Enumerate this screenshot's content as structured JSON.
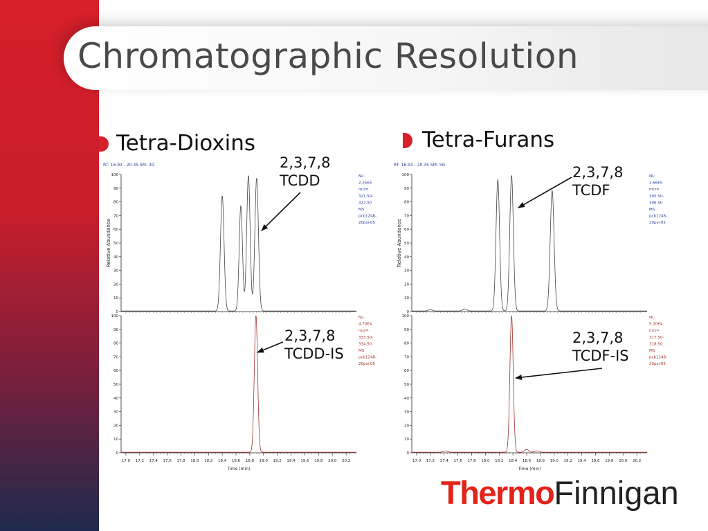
{
  "slide": {
    "title": "Chromatographic Resolution",
    "colors": {
      "accent": "#d8202a",
      "trace_top": "#444444",
      "trace_bottom": "#a0302a",
      "label_blue": "#27419a"
    },
    "logo": {
      "part1": "Thermo",
      "part2": "Finnigan"
    }
  },
  "left": {
    "heading": "Tetra-Dioxins",
    "header_text": "RT: 16.93 - 20.35  SM: 3G",
    "annotations": [
      {
        "id": "tcdd",
        "text": "2,3,7,8\nTCDD"
      },
      {
        "id": "tcdd-is",
        "text": "2,3,7,8\nTCDD-IS"
      }
    ]
  },
  "right": {
    "heading": "Tetra-Furans",
    "header_text": "RT: 16.93 - 20.35  SM: 5G",
    "annotations": [
      {
        "id": "tcdf",
        "text": "2,3,7,8\nTCDF"
      },
      {
        "id": "tcdf-is",
        "text": "2,3,7,8\nTCDF-IS"
      }
    ]
  },
  "chart_data": [
    {
      "type": "line",
      "id": "dioxin-native",
      "xlabel": "",
      "ylabel": "Relative Abundance",
      "xlim": [
        16.93,
        20.35
      ],
      "ylim": [
        0,
        100
      ],
      "x_ticks": [],
      "y_ticks": [
        0,
        10,
        20,
        30,
        40,
        50,
        60,
        70,
        80,
        90,
        100
      ],
      "info_text": [
        "NL:",
        "2.25E5",
        "m/z=",
        "321.50-",
        "322.50",
        "MS",
        "pcb1248-",
        "20psi-05"
      ],
      "series": [
        {
          "peaks": [
            {
              "rt": 18.4,
              "height": 84,
              "width": 0.026
            },
            {
              "rt": 18.67,
              "height": 77,
              "width": 0.024
            },
            {
              "rt": 18.78,
              "height": 99,
              "width": 0.025
            },
            {
              "rt": 18.9,
              "height": 97,
              "width": 0.026
            }
          ]
        }
      ]
    },
    {
      "type": "line",
      "id": "dioxin-is",
      "xlabel": "Time (min)",
      "ylabel": "",
      "xlim": [
        16.93,
        20.35
      ],
      "ylim": [
        0,
        100
      ],
      "x_ticks": [
        17.0,
        17.2,
        17.4,
        17.6,
        17.8,
        18.0,
        18.2,
        18.4,
        18.6,
        18.8,
        19.0,
        19.2,
        19.4,
        19.6,
        19.8,
        20.0,
        20.2
      ],
      "y_ticks": [
        0,
        10,
        20,
        30,
        40,
        50,
        60,
        70,
        80,
        90,
        100
      ],
      "info_text": [
        "NL:",
        "4.70E4",
        "m/z=",
        "333.50-",
        "334.50",
        "MS",
        "pcb1248-",
        "20psi-05"
      ],
      "series": [
        {
          "peaks": [
            {
              "rt": 18.89,
              "height": 100,
              "width": 0.024
            }
          ]
        }
      ]
    },
    {
      "type": "line",
      "id": "furan-native",
      "xlabel": "",
      "ylabel": "Relative Abundance",
      "xlim": [
        16.93,
        20.35
      ],
      "ylim": [
        0,
        100
      ],
      "x_ticks": [],
      "y_ticks": [
        0,
        10,
        20,
        30,
        40,
        50,
        60,
        70,
        80,
        90,
        100
      ],
      "info_text": [
        "NL:",
        "2.66E5",
        "m/z=",
        "305.50-",
        "306.50",
        "MS",
        "pcb1248-",
        "20psi-05"
      ],
      "series": [
        {
          "peaks": [
            {
              "rt": 17.2,
              "height": 1,
              "width": 0.03
            },
            {
              "rt": 17.7,
              "height": 1.5,
              "width": 0.03
            },
            {
              "rt": 18.18,
              "height": 96,
              "width": 0.026
            },
            {
              "rt": 18.38,
              "height": 99,
              "width": 0.026
            },
            {
              "rt": 18.97,
              "height": 88,
              "width": 0.028
            }
          ]
        }
      ]
    },
    {
      "type": "line",
      "id": "furan-is",
      "xlabel": "Time (min)",
      "ylabel": "",
      "xlim": [
        16.93,
        20.35
      ],
      "ylim": [
        0,
        100
      ],
      "x_ticks": [
        17.0,
        17.2,
        17.4,
        17.6,
        17.8,
        18.0,
        18.2,
        18.4,
        18.6,
        18.8,
        19.0,
        19.2,
        19.4,
        19.6,
        19.8,
        20.0,
        20.2
      ],
      "y_ticks": [
        0,
        10,
        20,
        30,
        40,
        50,
        60,
        70,
        80,
        90,
        100
      ],
      "info_text": [
        "NL:",
        "5.20E4",
        "m/z=",
        "317.50-",
        "318.50",
        "MS",
        "pcb1248-",
        "20psi-05"
      ],
      "series": [
        {
          "peaks": [
            {
              "rt": 17.42,
              "height": 1,
              "width": 0.03
            },
            {
              "rt": 18.38,
              "height": 100,
              "width": 0.024
            },
            {
              "rt": 18.6,
              "height": 2,
              "width": 0.03
            },
            {
              "rt": 18.75,
              "height": 1,
              "width": 0.03
            }
          ]
        }
      ]
    }
  ]
}
